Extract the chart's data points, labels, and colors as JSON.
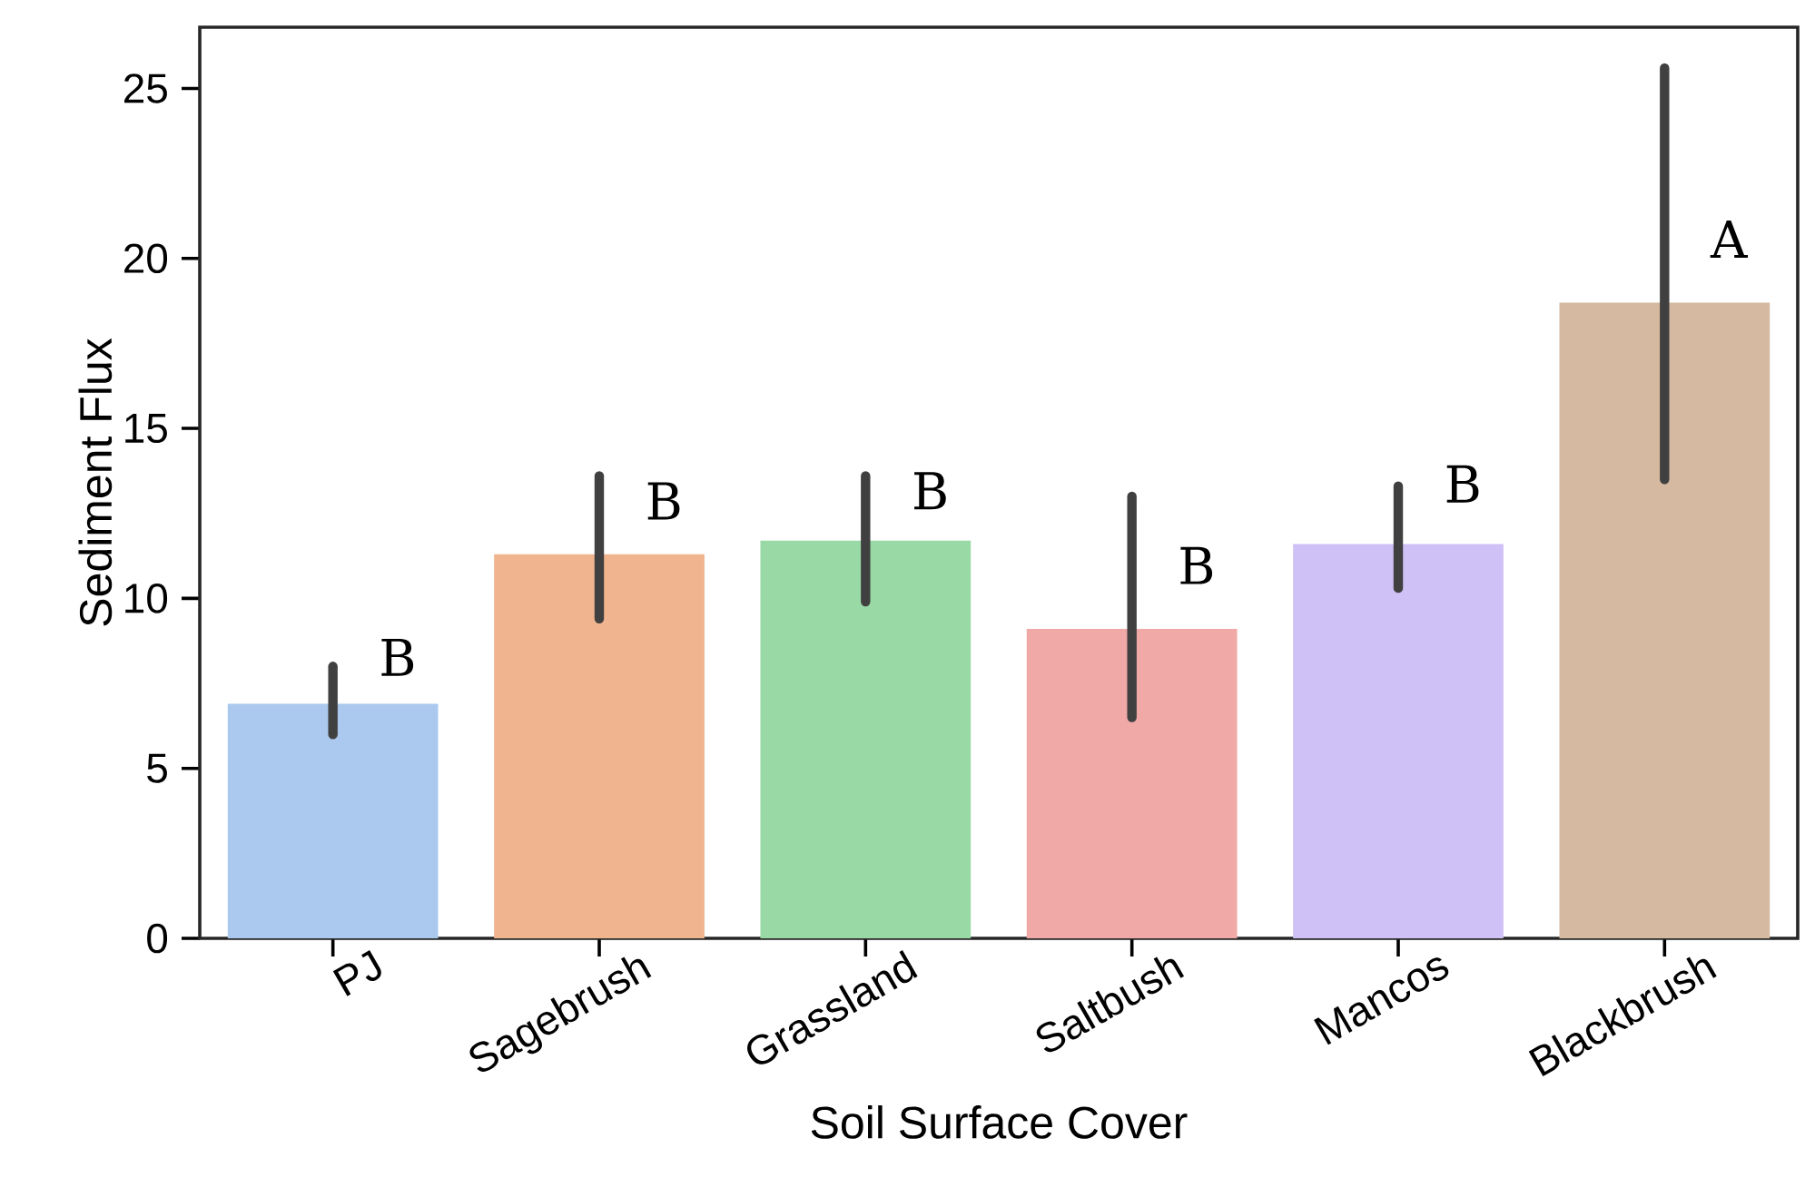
{
  "chart_data": {
    "type": "bar",
    "xlabel": "Soil Surface Cover",
    "ylabel": "Sediment Flux",
    "categories": [
      "PJ",
      "Sagebrush",
      "Grassland",
      "Saltbush",
      "Mancos",
      "Blackbrush"
    ],
    "values": [
      6.9,
      11.3,
      11.7,
      9.1,
      11.6,
      18.7
    ],
    "colors": [
      "#abc9ee",
      "#f0b48f",
      "#98d9a6",
      "#f0a9a7",
      "#cfc0f5",
      "#d5b9a0"
    ],
    "errors": [
      [
        6.0,
        8.0
      ],
      [
        9.4,
        13.6
      ],
      [
        9.9,
        13.6
      ],
      [
        6.5,
        13.0
      ],
      [
        10.3,
        13.3
      ],
      [
        13.5,
        25.6
      ]
    ],
    "ylim": [
      0,
      26.8
    ],
    "yticks": [
      0,
      5,
      10,
      15,
      20,
      25
    ],
    "annotations": [
      {
        "text": "B",
        "x": "PJ",
        "y": 7.7
      },
      {
        "text": "B",
        "x": "Sagebrush",
        "y": 12.3
      },
      {
        "text": "B",
        "x": "Grassland",
        "y": 12.6
      },
      {
        "text": "B",
        "x": "Saltbush",
        "y": 10.4
      },
      {
        "text": "B",
        "x": "Mancos",
        "y": 12.8
      },
      {
        "text": "A",
        "x": "Blackbrush",
        "y": 20.0
      }
    ]
  }
}
